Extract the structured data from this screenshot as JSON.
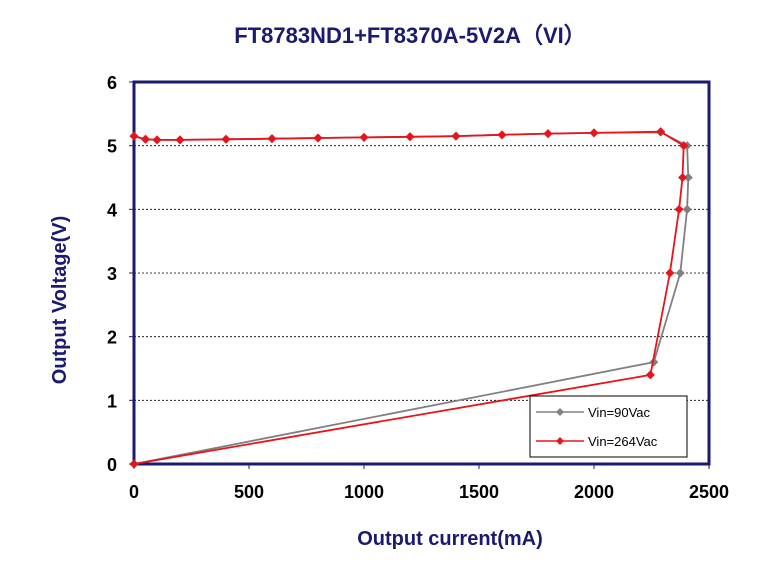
{
  "chart_data": {
    "type": "line",
    "title": "FT8783ND1+FT8370A-5V2A（VI）",
    "xlabel": "Output current(mA)",
    "ylabel": "Output Voltage(V)",
    "xlim": [
      0,
      2500
    ],
    "ylim": [
      0,
      6
    ],
    "xticks": [
      0,
      500,
      1000,
      1500,
      2000,
      2500
    ],
    "yticks": [
      0,
      1,
      2,
      3,
      4,
      5,
      6
    ],
    "grid": "horizontal dotted",
    "legend_position": "bottom-right",
    "series": [
      {
        "name": "Vin=90Vac",
        "color": "#808080",
        "marker": "diamond",
        "points": [
          [
            0,
            5.15
          ],
          [
            50,
            5.1
          ],
          [
            100,
            5.09
          ],
          [
            200,
            5.09
          ],
          [
            400,
            5.1
          ],
          [
            600,
            5.11
          ],
          [
            800,
            5.12
          ],
          [
            1000,
            5.13
          ],
          [
            1200,
            5.14
          ],
          [
            1400,
            5.15
          ],
          [
            1600,
            5.17
          ],
          [
            1800,
            5.19
          ],
          [
            2000,
            5.2
          ],
          [
            2290,
            5.21
          ],
          [
            2405,
            5.0
          ],
          [
            2410,
            4.5
          ],
          [
            2405,
            4.0
          ],
          [
            2375,
            3.0
          ],
          [
            2260,
            1.6
          ],
          [
            0,
            0
          ]
        ]
      },
      {
        "name": "Vin=264Vac",
        "color": "#e8141c",
        "marker": "diamond",
        "points": [
          [
            0,
            5.15
          ],
          [
            50,
            5.1
          ],
          [
            100,
            5.09
          ],
          [
            200,
            5.09
          ],
          [
            400,
            5.1
          ],
          [
            600,
            5.11
          ],
          [
            800,
            5.12
          ],
          [
            1000,
            5.13
          ],
          [
            1200,
            5.14
          ],
          [
            1400,
            5.15
          ],
          [
            1600,
            5.17
          ],
          [
            1800,
            5.19
          ],
          [
            2000,
            5.2
          ],
          [
            2290,
            5.22
          ],
          [
            2390,
            5.0
          ],
          [
            2385,
            4.5
          ],
          [
            2370,
            4.0
          ],
          [
            2330,
            3.0
          ],
          [
            2245,
            1.4
          ],
          [
            0,
            0
          ]
        ]
      }
    ]
  }
}
